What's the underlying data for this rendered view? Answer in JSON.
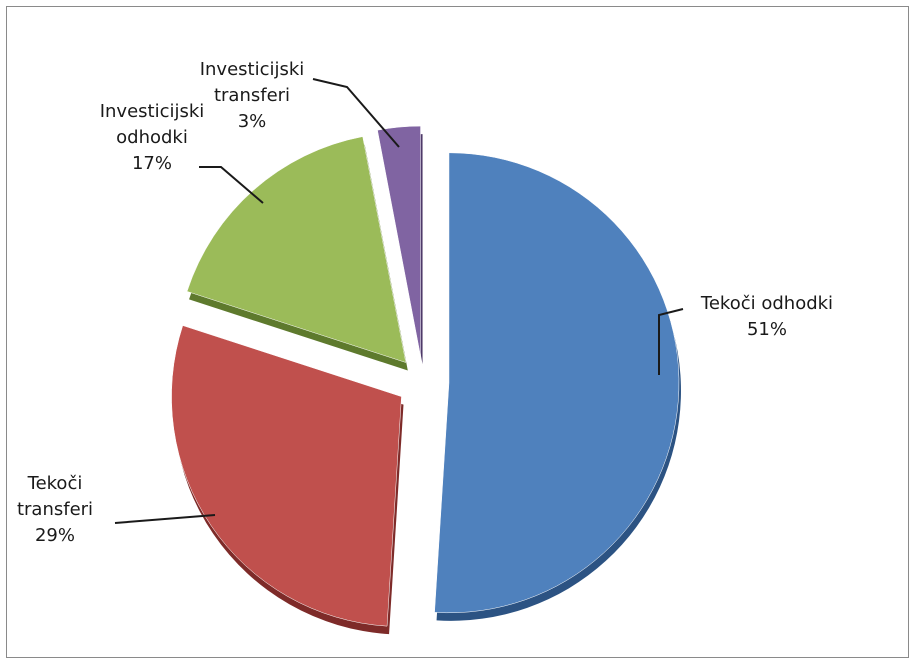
{
  "chart_data": {
    "type": "pie",
    "title": "",
    "exploded": true,
    "slices": [
      {
        "label_lines": [
          "Tekoči odhodki"
        ],
        "percent_text": "51%",
        "value": 51,
        "color": "#4F81BD",
        "side_color": "#2C5383"
      },
      {
        "label_lines": [
          "Tekoči",
          "transferi"
        ],
        "percent_text": "29%",
        "value": 29,
        "color": "#C0504D",
        "side_color": "#7E2B29"
      },
      {
        "label_lines": [
          "Investicijski",
          "odhodki"
        ],
        "percent_text": "17%",
        "value": 17,
        "color": "#9BBB59",
        "side_color": "#5E7A2D"
      },
      {
        "label_lines": [
          "Investicijski",
          "transferi"
        ],
        "percent_text": "3%",
        "value": 3,
        "color": "#8064A2",
        "side_color": "#4E3A69"
      }
    ],
    "legend": "none",
    "labels": "outside-with-leader-lines"
  }
}
